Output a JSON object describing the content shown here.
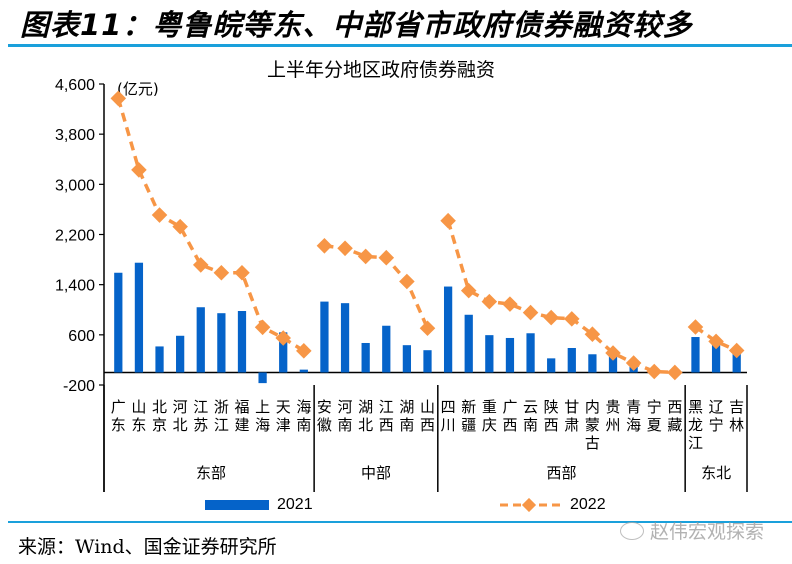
{
  "figure": {
    "title": "图表11：粤鲁皖等东、中部省市政府债券融资较多",
    "source": "来源：Wind、国金证券研究所",
    "watermark": "赵伟宏观探索"
  },
  "colors": {
    "bar_2021": "#0563c9",
    "line_2022": "#f79646",
    "rule": "#1aa0db"
  },
  "chart_data": {
    "type": "bar",
    "title": "上半年分地区政府债券融资",
    "ylabel": "(亿元)",
    "xlabel": "",
    "ylim": [
      -200,
      4600
    ],
    "yticks": [
      4600,
      3800,
      3000,
      2200,
      1400,
      600,
      -200
    ],
    "ytick_labels": [
      "4,600",
      "3,800",
      "3,000",
      "2,200",
      "1,400",
      "600",
      "-200"
    ],
    "grid": false,
    "legend_position": "bottom",
    "categories": [
      "广东",
      "山东",
      "北京",
      "河北",
      "江苏",
      "浙江",
      "福建",
      "上海",
      "天津",
      "海南",
      "安徽",
      "河南",
      "湖北",
      "江西",
      "湖南",
      "山西",
      "四川",
      "新疆",
      "重庆",
      "广西",
      "云南",
      "陕西",
      "甘肃",
      "内蒙古",
      "贵州",
      "青海",
      "宁夏",
      "西藏",
      "黑龙江",
      "辽宁",
      "吉林"
    ],
    "groups": [
      {
        "name": "东部",
        "start": 0,
        "end": 9
      },
      {
        "name": "中部",
        "start": 10,
        "end": 15
      },
      {
        "name": "西部",
        "start": 16,
        "end": 27
      },
      {
        "name": "东北",
        "start": 28,
        "end": 30
      }
    ],
    "series": [
      {
        "name": "2021",
        "type": "bar",
        "values": [
          1590,
          1750,
          415,
          585,
          1040,
          945,
          980,
          -170,
          640,
          45,
          1130,
          1105,
          470,
          745,
          435,
          355,
          1370,
          920,
          595,
          550,
          625,
          225,
          390,
          290,
          280,
          120,
          30,
          0,
          565,
          440,
          310
        ]
      },
      {
        "name": "2022",
        "type": "line",
        "values": [
          4370,
          3230,
          2510,
          2325,
          1715,
          1590,
          1590,
          720,
          550,
          345,
          2020,
          1980,
          1850,
          1830,
          1450,
          705,
          2420,
          1305,
          1130,
          1090,
          955,
          875,
          855,
          610,
          310,
          150,
          15,
          0,
          725,
          495,
          350
        ]
      }
    ]
  }
}
